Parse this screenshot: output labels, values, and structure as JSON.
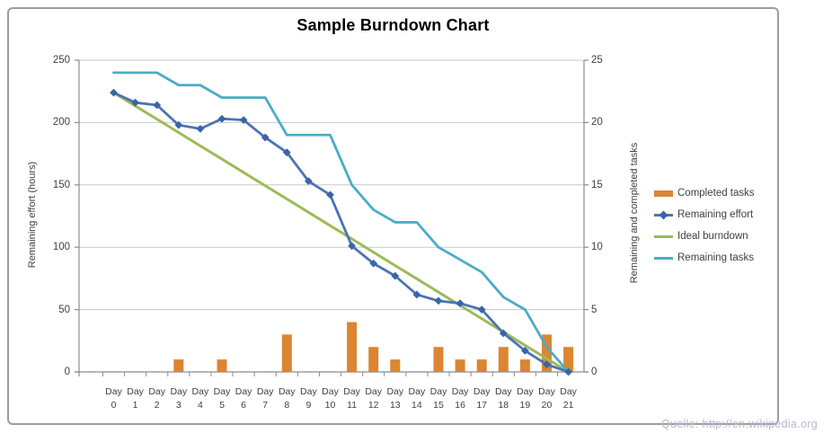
{
  "chart_data": {
    "type": "combo",
    "title": "Sample Burndown Chart",
    "categories": [
      "Day 0",
      "Day 1",
      "Day 2",
      "Day 3",
      "Day 4",
      "Day 5",
      "Day 6",
      "Day 7",
      "Day 8",
      "Day 9",
      "Day 10",
      "Day 11",
      "Day 12",
      "Day 13",
      "Day 14",
      "Day 15",
      "Day 16",
      "Day 17",
      "Day 18",
      "Day 19",
      "Day 20",
      "Day 21"
    ],
    "series": [
      {
        "name": "Completed tasks",
        "type": "bar",
        "axis": "right",
        "color": "#DC8532",
        "values": [
          0,
          0,
          0,
          1,
          0,
          1,
          0,
          0,
          3,
          0,
          0,
          4,
          2,
          1,
          0,
          2,
          1,
          1,
          2,
          1,
          3,
          2
        ]
      },
      {
        "name": "Remaining effort",
        "type": "line",
        "axis": "left",
        "color": "#4C74B2",
        "marker": "diamond",
        "marker_color": "#3A64A6",
        "values": [
          224,
          216,
          214,
          198,
          195,
          203,
          202,
          188,
          176,
          153,
          142,
          101,
          87,
          77,
          62,
          57,
          55,
          50,
          31,
          17,
          6,
          0
        ]
      },
      {
        "name": "Ideal burndown",
        "type": "line",
        "axis": "left",
        "color": "#9BBB59",
        "values": [
          224,
          213.3,
          202.7,
          192,
          181.3,
          170.7,
          160,
          149.3,
          138.7,
          128,
          117.3,
          106.7,
          96,
          85.3,
          74.7,
          64,
          53.3,
          42.7,
          32,
          21.3,
          10.7,
          0
        ]
      },
      {
        "name": "Remaining tasks",
        "type": "line",
        "axis": "right",
        "color": "#4BACC6",
        "values": [
          24,
          24,
          24,
          23,
          23,
          22,
          22,
          22,
          19,
          19,
          19,
          15,
          13,
          12,
          12,
          10,
          9,
          8,
          6,
          5,
          2,
          0
        ]
      }
    ],
    "left_axis": {
      "label": "Remaining effort (hours)",
      "ticks": [
        0,
        50,
        100,
        150,
        200,
        250
      ],
      "range": [
        0,
        250
      ]
    },
    "right_axis": {
      "label": "Remaining and completed tasks",
      "ticks": [
        0,
        5,
        10,
        15,
        20,
        25
      ],
      "range": [
        0,
        25
      ]
    },
    "legend_position": "right",
    "grid": true
  },
  "source": {
    "credit": "Quelle: http://en.wikipedia.org"
  },
  "colors": {
    "background": "#FFFFFF",
    "frame_border": "#9C9C9C",
    "gridline": "#C9C9C9",
    "axis_line": "#8C8C8C",
    "tick_label": "#404040",
    "title_text": "#000000",
    "source_text": "#B4BACC"
  }
}
